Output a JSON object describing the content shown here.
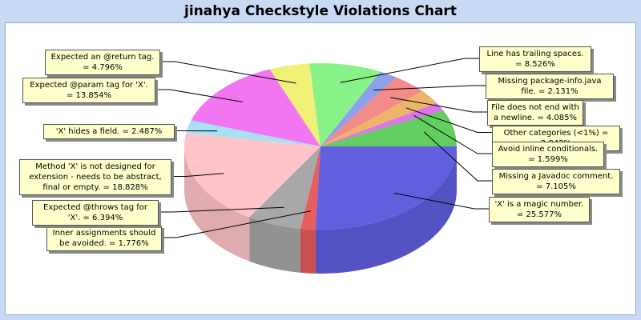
{
  "chart_data": {
    "type": "pie",
    "style": "3d",
    "title": "jinahya Checkstyle Violations Chart",
    "slices": [
      {
        "label": "'X' is a magic number. = 25.577%",
        "value": 25.577,
        "color": "#3535d6"
      },
      {
        "label": "Inner assignments should be avoided. = 1.776%",
        "value": 1.776,
        "color": "#e03131"
      },
      {
        "label": "Expected @throws tag for 'X'. = 6.394%",
        "value": 6.394,
        "color": "#909090"
      },
      {
        "label": "Method 'X' is not designed for extension - needs to be abstract, final or empty. = 18.828%",
        "value": 18.828,
        "color": "#ffb3b8"
      },
      {
        "label": "'X' hides a field. = 2.487%",
        "value": 2.487,
        "color": "#8fd6ef"
      },
      {
        "label": "Expected @param tag for 'X'. = 13.854%",
        "value": 13.854,
        "color": "#ee50ee"
      },
      {
        "label": "Expected an @return tag. = 4.796%",
        "value": 4.796,
        "color": "#ecec50"
      },
      {
        "label": "Line has trailing spaces. = 8.526%",
        "value": 8.526,
        "color": "#66ee66"
      },
      {
        "label": "Missing package-info.java file. = 2.131%",
        "value": 2.131,
        "color": "#6b86e8"
      },
      {
        "label": "File does not end with a newline. = 4.085%",
        "value": 4.085,
        "color": "#f06a6a"
      },
      {
        "label": "Other categories (<1%) = 2.842%",
        "value": 2.842,
        "color": "#e8a040"
      },
      {
        "label": "Avoid inline conditionals. = 1.599%",
        "value": 1.599,
        "color": "#d050e0"
      },
      {
        "label": "Missing a Javadoc comment. = 7.105%",
        "value": 7.105,
        "color": "#36c036"
      }
    ]
  }
}
